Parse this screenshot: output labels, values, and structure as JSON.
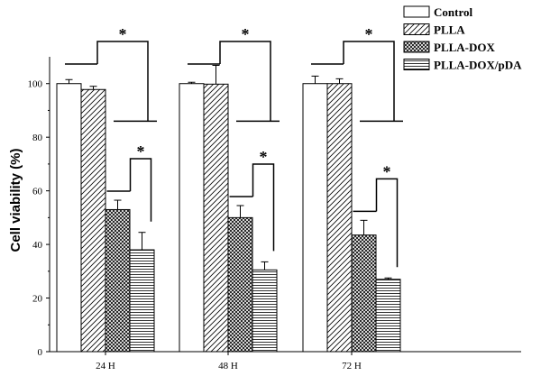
{
  "chart_data": {
    "type": "bar",
    "ylabel": "Cell viability (%)",
    "xlabel": "",
    "ylim": [
      0,
      110
    ],
    "yticks": [
      0,
      20,
      40,
      60,
      80,
      100
    ],
    "categories": [
      "24 H",
      "48 H",
      "72 H"
    ],
    "series": [
      {
        "name": "Control",
        "pattern": "blank",
        "values": [
          100,
          100,
          100
        ],
        "errors": [
          1.5,
          0.5,
          2.8
        ]
      },
      {
        "name": "PLLA",
        "pattern": "diagonal",
        "values": [
          97.8,
          99.8,
          100
        ],
        "errors": [
          1.2,
          7,
          1.8
        ]
      },
      {
        "name": "PLLA-DOX",
        "pattern": "crosshatch",
        "values": [
          53,
          50,
          43.5
        ],
        "errors": [
          3.5,
          4.5,
          5.5
        ]
      },
      {
        "name": "PLLA-DOX/pDA",
        "pattern": "horizontal",
        "values": [
          38,
          30.5,
          27
        ],
        "errors": [
          6.5,
          3,
          0.5
        ]
      }
    ],
    "significance": [
      {
        "category": "24 H",
        "comparison": [
          "Control,PLLA",
          "PLLA-DOX,PLLA-DOX/pDA"
        ],
        "label": "*"
      },
      {
        "category": "24 H",
        "comparison": [
          "PLLA-DOX",
          "PLLA-DOX/pDA"
        ],
        "label": "*"
      },
      {
        "category": "48 H",
        "comparison": [
          "Control,PLLA",
          "PLLA-DOX,PLLA-DOX/pDA"
        ],
        "label": "*"
      },
      {
        "category": "48 H",
        "comparison": [
          "PLLA-DOX",
          "PLLA-DOX/pDA"
        ],
        "label": "*"
      },
      {
        "category": "72 H",
        "comparison": [
          "Control,PLLA",
          "PLLA-DOX,PLLA-DOX/pDA"
        ],
        "label": "*"
      },
      {
        "category": "72 H",
        "comparison": [
          "PLLA-DOX",
          "PLLA-DOX/pDA"
        ],
        "label": "*"
      }
    ],
    "legend_position": "top-right",
    "grid": false
  }
}
